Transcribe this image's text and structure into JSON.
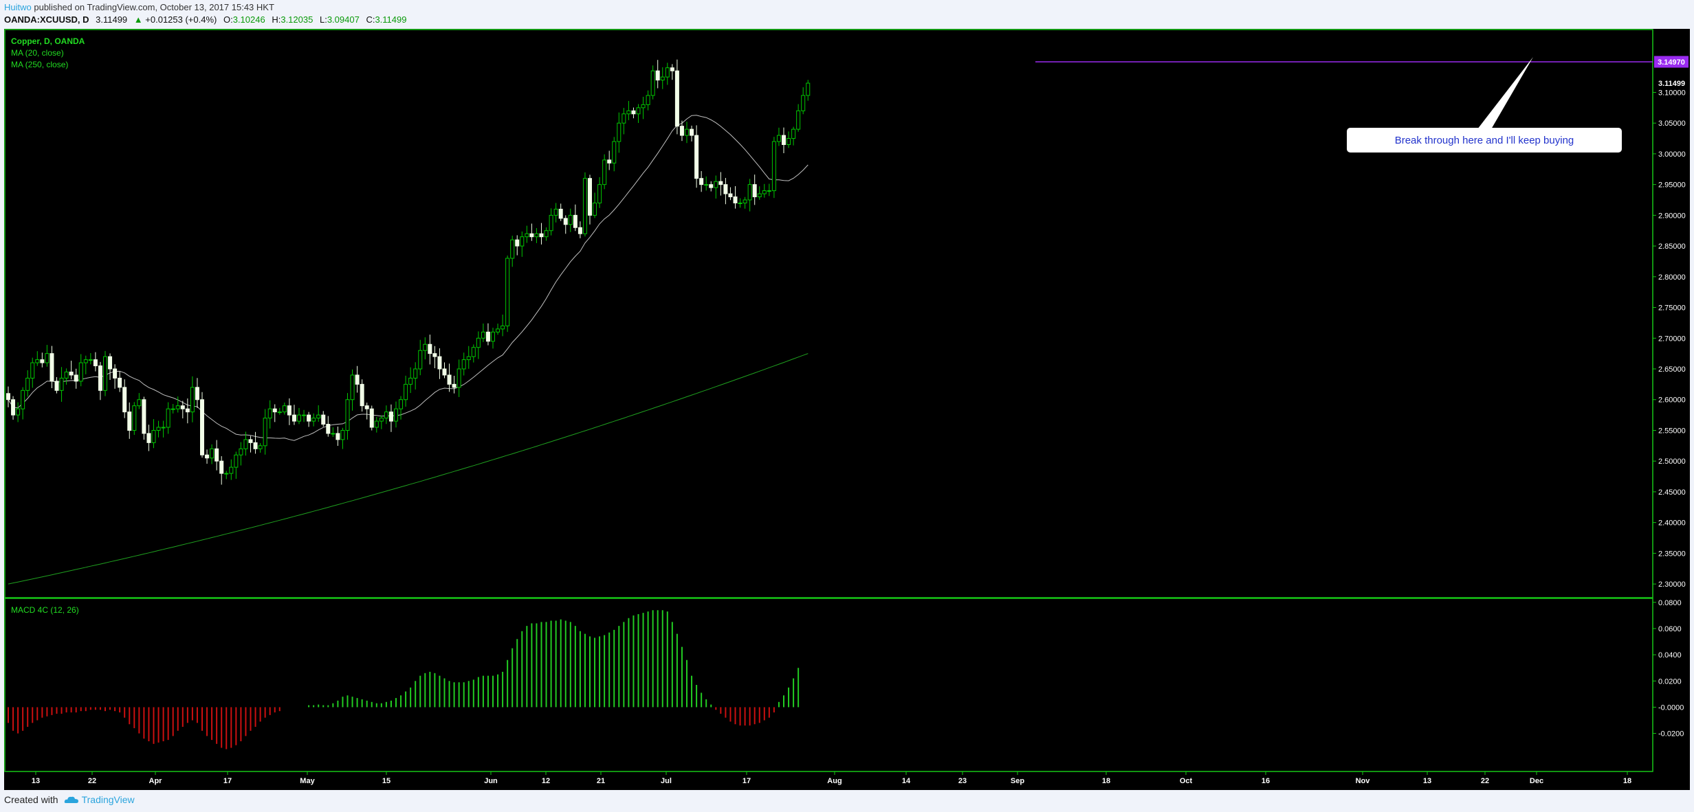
{
  "header": {
    "author": "Huitwo",
    "published": " published on TradingView.com, October 13, 2017 15:43 HKT",
    "symbol": "OANDA:XCUUSD, D",
    "last": "3.11499",
    "arrow": "▲",
    "change": "+0.01253 (+0.4%)",
    "o_label": "O:",
    "o_value": "3.10246",
    "h_label": "H:",
    "h_value": "3.12035",
    "l_label": "L:",
    "l_value": "3.09407",
    "c_label": "C:",
    "c_value": "3.11499"
  },
  "legend": {
    "title": "Copper, D, OANDA",
    "ma20": "MA (20, close)",
    "ma250": "MA (250, close)",
    "macd": "MACD 4C (12, 26)"
  },
  "annotation": {
    "text": "Break through here and I'll keep buying",
    "level_label": "3.14970",
    "last_label": "3.11499"
  },
  "footer": {
    "created": "Created with",
    "brand": "TradingView"
  },
  "colors": {
    "up": "#00c800",
    "down_fill": "#f2ffe8",
    "ma20": "#c0c0c0",
    "ma250": "#1fa01f",
    "hist_pos": "#22cc22",
    "hist_neg": "#cc1010",
    "line": "#9a2bf0",
    "frame": "#17c717"
  },
  "chart_data": {
    "type": "candlestick",
    "title": "Copper, D, OANDA",
    "x_ticks": [
      "13",
      "22",
      "Apr",
      "17",
      "May",
      "15",
      "Jun",
      "12",
      "21",
      "Jul",
      "17",
      "Aug",
      "14",
      "23",
      "Sep",
      "18",
      "Oct",
      "16",
      "Nov",
      "13",
      "22",
      "Dec",
      "18"
    ],
    "y_ticks": [
      "2.30000",
      "2.35000",
      "2.40000",
      "2.45000",
      "2.50000",
      "2.55000",
      "2.60000",
      "2.65000",
      "2.70000",
      "2.75000",
      "2.80000",
      "2.85000",
      "2.90000",
      "2.95000",
      "3.00000",
      "3.05000",
      "3.10000"
    ],
    "ylim": [
      2.28,
      3.2
    ],
    "horizontal_level": 3.1497,
    "last_price": 3.11499,
    "macd_ticks": [
      "0.0800",
      "0.0600",
      "0.0400",
      "0.0200",
      "-0.0000",
      "-0.0200"
    ],
    "macd_ylim": [
      -0.048,
      0.082
    ],
    "closes": [
      2.6,
      2.575,
      2.585,
      2.615,
      2.635,
      2.66,
      2.665,
      2.66,
      2.675,
      2.63,
      2.615,
      2.635,
      2.645,
      2.64,
      2.63,
      2.66,
      2.665,
      2.665,
      2.655,
      2.615,
      2.67,
      2.65,
      2.635,
      2.62,
      2.58,
      2.55,
      2.59,
      2.6,
      2.545,
      2.53,
      2.55,
      2.555,
      2.555,
      2.585,
      2.585,
      2.59,
      2.585,
      2.58,
      2.62,
      2.6,
      2.51,
      2.505,
      2.52,
      2.5,
      2.48,
      2.48,
      2.49,
      2.51,
      2.52,
      2.535,
      2.53,
      2.52,
      2.525,
      2.57,
      2.585,
      2.58,
      2.58,
      2.59,
      2.575,
      2.565,
      2.575,
      2.575,
      2.565,
      2.57,
      2.575,
      2.56,
      2.545,
      2.545,
      2.535,
      2.55,
      2.6,
      2.64,
      2.625,
      2.59,
      2.585,
      2.555,
      2.565,
      2.57,
      2.58,
      2.565,
      2.585,
      2.6,
      2.625,
      2.635,
      2.65,
      2.68,
      2.69,
      2.675,
      2.67,
      2.65,
      2.64,
      2.625,
      2.62,
      2.65,
      2.665,
      2.67,
      2.685,
      2.7,
      2.71,
      2.695,
      2.71,
      2.715,
      2.72,
      2.83,
      2.86,
      2.85,
      2.865,
      2.87,
      2.865,
      2.87,
      2.865,
      2.875,
      2.9,
      2.91,
      2.895,
      2.885,
      2.9,
      2.88,
      2.87,
      2.96,
      2.9,
      2.92,
      2.95,
      2.99,
      2.985,
      3.02,
      3.05,
      3.065,
      3.07,
      3.065,
      3.075,
      3.08,
      3.095,
      3.135,
      3.12,
      3.125,
      3.14,
      3.135,
      3.045,
      3.03,
      3.04,
      3.03,
      2.96,
      2.95,
      2.95,
      2.945,
      2.955,
      2.95,
      2.935,
      2.93,
      2.92,
      2.92,
      2.925,
      2.95,
      2.93,
      2.935,
      2.94,
      2.94,
      3.02,
      3.03,
      3.015,
      3.025,
      3.04,
      3.07,
      3.095,
      3.115
    ],
    "macd": [
      -0.012,
      -0.018,
      -0.02,
      -0.018,
      -0.015,
      -0.012,
      -0.01,
      -0.008,
      -0.007,
      -0.006,
      -0.005,
      -0.005,
      -0.004,
      -0.004,
      -0.004,
      -0.003,
      -0.003,
      -0.002,
      -0.002,
      -0.002,
      -0.003,
      -0.002,
      -0.003,
      -0.004,
      -0.008,
      -0.013,
      -0.016,
      -0.02,
      -0.024,
      -0.026,
      -0.028,
      -0.027,
      -0.026,
      -0.025,
      -0.022,
      -0.018,
      -0.015,
      -0.012,
      -0.01,
      -0.012,
      -0.018,
      -0.022,
      -0.025,
      -0.028,
      -0.031,
      -0.032,
      -0.031,
      -0.029,
      -0.026,
      -0.022,
      -0.018,
      -0.015,
      -0.011,
      -0.008,
      -0.006,
      -0.004,
      -0.003,
      null,
      null,
      null,
      null,
      null,
      0.0015,
      0.0015,
      0.002,
      0.0015,
      0.0015,
      0.003,
      0.005,
      0.008,
      0.009,
      0.008,
      0.007,
      0.006,
      0.005,
      0.004,
      0.003,
      0.003,
      0.004,
      0.005,
      0.007,
      0.009,
      0.012,
      0.015,
      0.02,
      0.024,
      0.026,
      0.027,
      0.026,
      0.024,
      0.022,
      0.02,
      0.019,
      0.019,
      0.019,
      0.02,
      0.021,
      0.023,
      0.024,
      0.024,
      0.024,
      0.025,
      0.027,
      0.036,
      0.045,
      0.052,
      0.058,
      0.062,
      0.064,
      0.064,
      0.065,
      0.065,
      0.066,
      0.066,
      0.067,
      0.066,
      0.065,
      0.062,
      0.058,
      0.056,
      0.054,
      0.053,
      0.054,
      0.055,
      0.057,
      0.059,
      0.062,
      0.065,
      0.068,
      0.07,
      0.071,
      0.072,
      0.073,
      0.074,
      0.074,
      0.074,
      0.073,
      0.065,
      0.056,
      0.046,
      0.036,
      0.024,
      0.017,
      0.011,
      0.006,
      0.002,
      -0.002,
      -0.005,
      -0.008,
      -0.011,
      -0.013,
      -0.014,
      -0.014,
      -0.014,
      -0.013,
      -0.012,
      -0.01,
      -0.008,
      -0.004,
      0.004,
      0.009,
      0.015,
      0.022,
      0.03
    ]
  }
}
